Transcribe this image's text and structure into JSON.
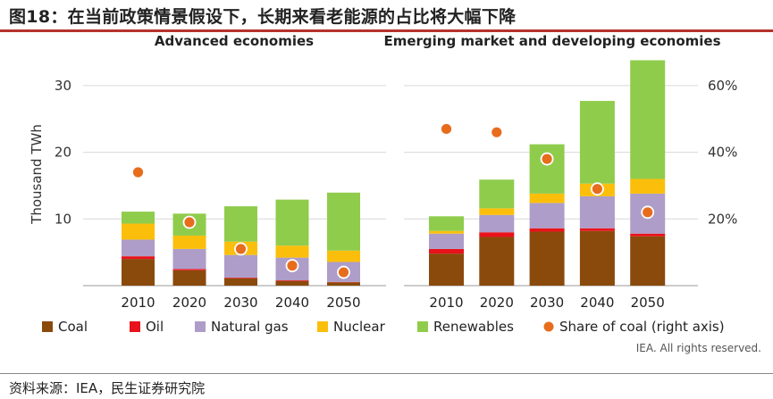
{
  "figure": {
    "title": "图18：在当前政策情景假设下，长期来看老能源的占比将大幅下降",
    "source": "资料来源：IEA，民生证券研究院",
    "copyright": "IEA. All rights reserved."
  },
  "colors": {
    "title_rule": "#b5332b",
    "Coal": "#8a4a0c",
    "Oil": "#e8131b",
    "Natural gas": "#ad9dc8",
    "Nuclear": "#fbbf0b",
    "Renewables": "#90cc4c",
    "share_dot": "#e76d1d"
  },
  "chart_data": [
    {
      "type": "bar",
      "stacked": true,
      "title": "Advanced economies",
      "categories": [
        "2010",
        "2020",
        "2030",
        "2040",
        "2050"
      ],
      "ylabel": "Thousand TWh",
      "ylim": [
        0,
        34
      ],
      "yticks": [
        10,
        20,
        30
      ],
      "y2lim": [
        0,
        0.68
      ],
      "y2ticks": [
        "20%",
        "40%",
        "60%"
      ],
      "series": [
        {
          "name": "Coal",
          "values": [
            4.0,
            2.3,
            1.1,
            0.7,
            0.5
          ]
        },
        {
          "name": "Oil",
          "values": [
            0.4,
            0.2,
            0.1,
            0.1,
            0.05
          ]
        },
        {
          "name": "Natural gas",
          "values": [
            2.5,
            3.0,
            3.4,
            3.4,
            3.0
          ]
        },
        {
          "name": "Nuclear",
          "values": [
            2.4,
            2.0,
            2.0,
            1.8,
            1.7
          ]
        },
        {
          "name": "Renewables",
          "values": [
            1.8,
            3.3,
            5.3,
            6.9,
            8.7
          ]
        }
      ],
      "share_of_coal": [
        0.34,
        0.19,
        0.11,
        0.06,
        0.04
      ]
    },
    {
      "type": "bar",
      "stacked": true,
      "title": "Emerging market and developing economies",
      "categories": [
        "2010",
        "2020",
        "2030",
        "2040",
        "2050"
      ],
      "ylabel": "Thousand TWh",
      "ylim": [
        0,
        34
      ],
      "yticks": [
        10,
        20,
        30
      ],
      "y2lim": [
        0,
        0.68
      ],
      "y2ticks": [
        "20%",
        "40%",
        "60%"
      ],
      "series": [
        {
          "name": "Coal",
          "values": [
            4.8,
            7.3,
            8.1,
            8.2,
            7.4
          ]
        },
        {
          "name": "Oil",
          "values": [
            0.7,
            0.7,
            0.5,
            0.4,
            0.4
          ]
        },
        {
          "name": "Natural gas",
          "values": [
            2.3,
            2.6,
            3.8,
            4.8,
            6.0
          ]
        },
        {
          "name": "Nuclear",
          "values": [
            0.4,
            1.0,
            1.4,
            1.9,
            2.2
          ]
        },
        {
          "name": "Renewables",
          "values": [
            2.2,
            4.3,
            7.4,
            12.4,
            17.8
          ]
        }
      ],
      "share_of_coal": [
        0.47,
        0.46,
        0.38,
        0.29,
        0.22
      ]
    }
  ],
  "legend": {
    "items": [
      {
        "label": "Coal",
        "kind": "square",
        "color_key": "Coal"
      },
      {
        "label": "Oil",
        "kind": "square",
        "color_key": "Oil"
      },
      {
        "label": "Natural gas",
        "kind": "square",
        "color_key": "Natural gas"
      },
      {
        "label": "Nuclear",
        "kind": "square",
        "color_key": "Nuclear"
      },
      {
        "label": "Renewables",
        "kind": "square",
        "color_key": "Renewables"
      },
      {
        "label": "Share of coal (right axis)",
        "kind": "dot",
        "color_key": "share_dot"
      }
    ]
  }
}
